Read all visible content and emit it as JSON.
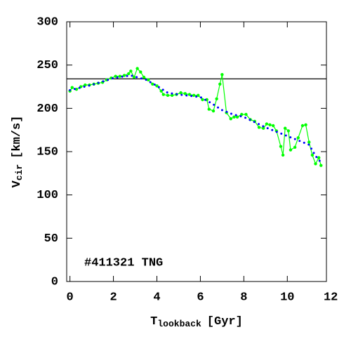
{
  "chart_data": {
    "type": "line",
    "annotation": "#411321 TNG",
    "xlabel": {
      "main": "T",
      "sub": "lookback",
      "rest": "[Gyr]"
    },
    "ylabel": {
      "main": "V",
      "sub": "cir",
      "rest": "[km/s]"
    },
    "xlim": [
      -0.15,
      11.8
    ],
    "xticks": [
      0,
      2,
      4,
      6,
      8,
      10,
      12
    ],
    "ylim": [
      0,
      300
    ],
    "yticks": [
      0,
      50,
      100,
      150,
      200,
      250,
      300
    ],
    "hline": {
      "value": 234,
      "color": "#000000"
    },
    "series": [
      {
        "color": "#00ff00",
        "style": "line-points",
        "x": [
          0.0,
          0.1,
          0.3,
          0.5,
          0.7,
          0.9,
          1.1,
          1.3,
          1.5,
          1.7,
          1.9,
          2.1,
          2.3,
          2.5,
          2.7,
          2.8,
          2.95,
          3.1,
          3.25,
          3.4,
          3.6,
          3.8,
          4.0,
          4.2,
          4.3,
          4.5,
          4.7,
          4.9,
          5.1,
          5.3,
          5.5,
          5.7,
          5.9,
          6.1,
          6.3,
          6.4,
          6.6,
          6.75,
          6.9,
          7.0,
          7.2,
          7.4,
          7.55,
          7.7,
          7.9,
          8.1,
          8.3,
          8.5,
          8.7,
          8.9,
          9.05,
          9.2,
          9.35,
          9.5,
          9.7,
          9.8,
          9.9,
          10.05,
          10.15,
          10.35,
          10.5,
          10.7,
          10.85,
          11.0,
          11.15,
          11.3,
          11.45,
          11.55
        ],
        "values": [
          220,
          224,
          222,
          225,
          227,
          227,
          228,
          229,
          230,
          233,
          235,
          237,
          237,
          238,
          240,
          243,
          236,
          246,
          242,
          236,
          233,
          228,
          226,
          220,
          216,
          215,
          215,
          216,
          218,
          217,
          216,
          215,
          215,
          210,
          210,
          199,
          197,
          211,
          228,
          239,
          195,
          188,
          190,
          190,
          193,
          193,
          187,
          185,
          178,
          177,
          182,
          181,
          180,
          174,
          156,
          146,
          177,
          174,
          152,
          155,
          166,
          180,
          181,
          161,
          146,
          136,
          143,
          134
        ]
      },
      {
        "color": "#0000ff",
        "style": "dotted",
        "x": [
          0,
          1,
          2,
          2.8,
          3.5,
          4,
          4.5,
          5,
          6,
          6.5,
          7,
          7.5,
          8,
          8.5,
          9,
          9.5,
          10,
          10.5,
          11,
          11.3,
          11.6
        ],
        "values": [
          221,
          227,
          235,
          238,
          233,
          226,
          218,
          216,
          213,
          206,
          198,
          193,
          190,
          184,
          178,
          173,
          168,
          163,
          158,
          145,
          136
        ]
      }
    ]
  }
}
